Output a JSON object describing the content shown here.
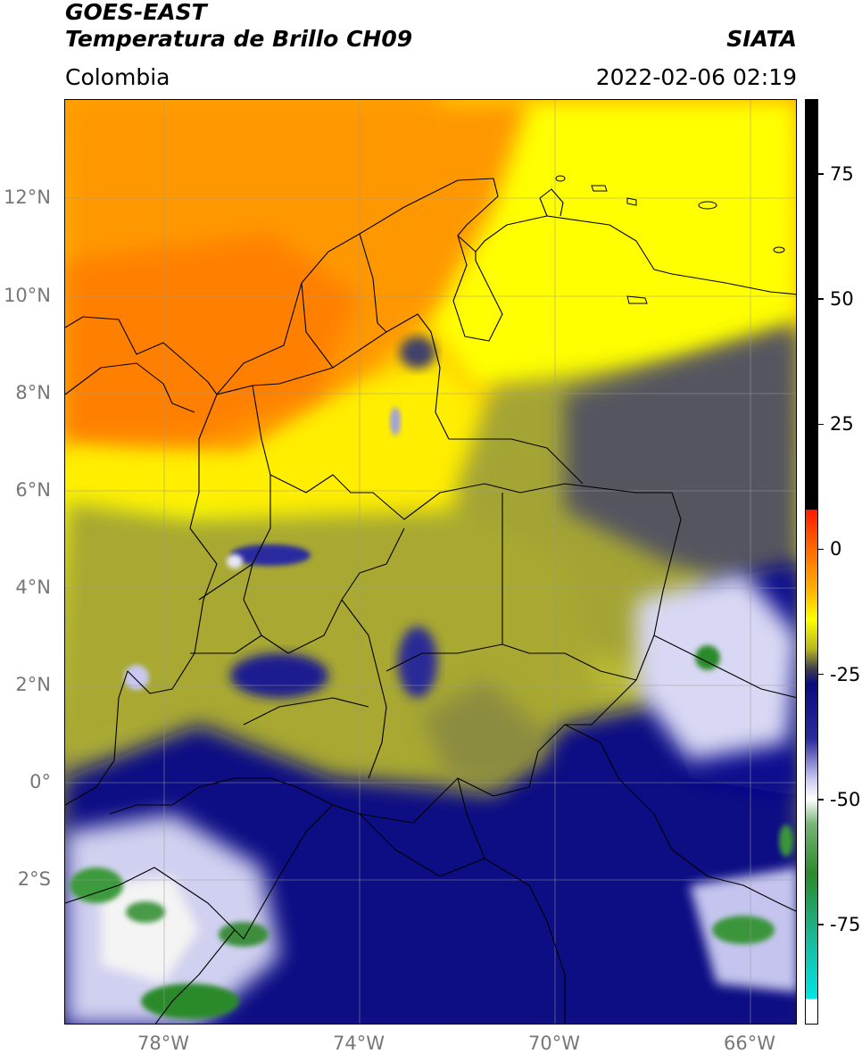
{
  "header": {
    "title_line1": "GOES-EAST",
    "title_line2": "Temperatura de Brillo CH09",
    "brand": "SIATA",
    "region": "Colombia",
    "datetime": "2022-02-06 02:19"
  },
  "map": {
    "lon_range": [
      -80,
      -65
    ],
    "lat_range": [
      -5,
      14
    ],
    "grid": true,
    "lat_ticks": [
      {
        "value": 12,
        "label": "12°N"
      },
      {
        "value": 10,
        "label": "10°N"
      },
      {
        "value": 8,
        "label": "8°N"
      },
      {
        "value": 6,
        "label": "6°N"
      },
      {
        "value": 4,
        "label": "4°N"
      },
      {
        "value": 2,
        "label": "2°N"
      },
      {
        "value": 0,
        "label": "0°"
      },
      {
        "value": -2,
        "label": "2°S"
      }
    ],
    "lon_ticks": [
      {
        "value": -78,
        "label": "78°W"
      },
      {
        "value": -74,
        "label": "74°W"
      },
      {
        "value": -70,
        "label": "70°W"
      },
      {
        "value": -66,
        "label": "66°W"
      }
    ]
  },
  "colorbar": {
    "range": [
      -95,
      90
    ],
    "ticks": [
      {
        "value": 75,
        "label": "75"
      },
      {
        "value": 50,
        "label": "50"
      },
      {
        "value": 25,
        "label": "25"
      },
      {
        "value": 0,
        "label": "0"
      },
      {
        "value": -25,
        "label": "-25"
      },
      {
        "value": -50,
        "label": "-50"
      },
      {
        "value": -75,
        "label": "-75"
      }
    ],
    "stops": [
      {
        "value": 90,
        "color": "#000000"
      },
      {
        "value": 8,
        "color": "#000000"
      },
      {
        "value": 7.9,
        "color": "#ff1a00"
      },
      {
        "value": 0,
        "color": "#ff6a00"
      },
      {
        "value": -8,
        "color": "#ffb000"
      },
      {
        "value": -14,
        "color": "#ffff00"
      },
      {
        "value": -20,
        "color": "#b5b520"
      },
      {
        "value": -24,
        "color": "#3c3c50"
      },
      {
        "value": -27,
        "color": "#0a0a80"
      },
      {
        "value": -38,
        "color": "#2b2ba0"
      },
      {
        "value": -46,
        "color": "#c8c8f0"
      },
      {
        "value": -50,
        "color": "#ffffff"
      },
      {
        "value": -55,
        "color": "#78b478"
      },
      {
        "value": -65,
        "color": "#2a8a2a"
      },
      {
        "value": -78,
        "color": "#1ab99a"
      },
      {
        "value": -90,
        "color": "#00e5e5"
      },
      {
        "value": -90.1,
        "color": "#ffffff"
      },
      {
        "value": -95,
        "color": "#ffffff"
      }
    ]
  }
}
